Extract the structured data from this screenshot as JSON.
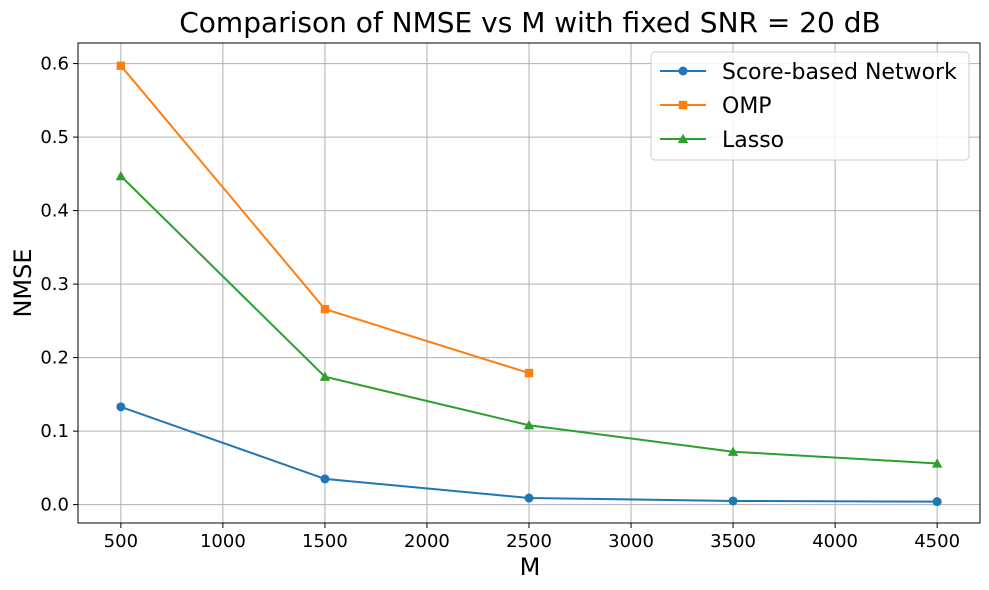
{
  "chart_data": {
    "type": "line",
    "title": "Comparison of NMSE vs M with fixed SNR = 20 dB",
    "xlabel": "M",
    "ylabel": "NMSE",
    "xlim": [
      290,
      4710
    ],
    "ylim": [
      -0.025,
      0.628
    ],
    "xticks": [
      500,
      1000,
      1500,
      2000,
      2500,
      3000,
      3500,
      4000,
      4500
    ],
    "yticks": [
      0.0,
      0.1,
      0.2,
      0.3,
      0.4,
      0.5,
      0.6
    ],
    "xtick_labels": [
      "500",
      "1000",
      "1500",
      "2000",
      "2500",
      "3000",
      "3500",
      "4000",
      "4500"
    ],
    "ytick_labels": [
      "0.0",
      "0.1",
      "0.2",
      "0.3",
      "0.4",
      "0.5",
      "0.6"
    ],
    "grid": true,
    "legend_position": "top-right",
    "series": [
      {
        "name": "Score-based Network",
        "color": "#1f77b4",
        "marker": "circle",
        "x": [
          500,
          1500,
          2500,
          3500,
          4500
        ],
        "y": [
          0.133,
          0.035,
          0.009,
          0.005,
          0.004
        ]
      },
      {
        "name": "OMP",
        "color": "#ff7f0e",
        "marker": "square",
        "x": [
          500,
          1500,
          2500
        ],
        "y": [
          0.597,
          0.266,
          0.179
        ]
      },
      {
        "name": "Lasso",
        "color": "#2ca02c",
        "marker": "triangle",
        "x": [
          500,
          1500,
          2500,
          3500,
          4500
        ],
        "y": [
          0.447,
          0.174,
          0.108,
          0.072,
          0.056
        ]
      }
    ]
  }
}
